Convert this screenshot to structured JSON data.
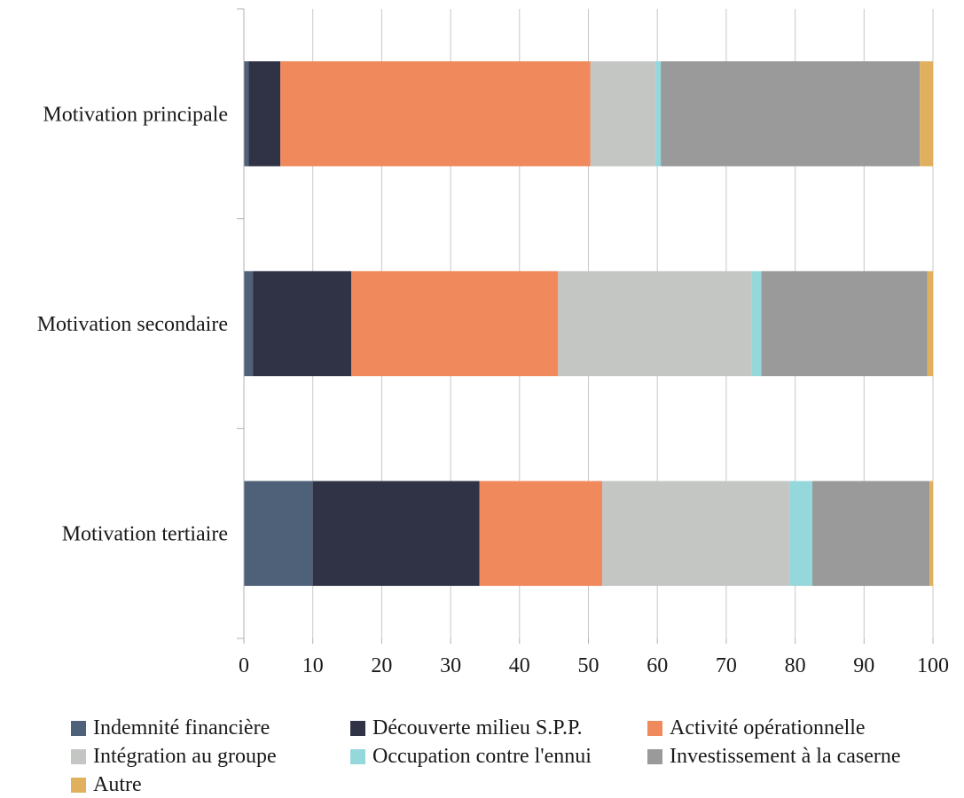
{
  "chart_data": {
    "type": "bar",
    "orientation": "horizontal",
    "stacked": true,
    "title": "",
    "xlabel": "",
    "ylabel": "",
    "xlim": [
      0,
      100
    ],
    "x_ticks": [
      0,
      10,
      20,
      30,
      40,
      50,
      60,
      70,
      80,
      90,
      100
    ],
    "grid": true,
    "legend_position": "bottom",
    "categories": [
      "Motivation principale",
      "Motivation secondaire",
      "Motivation tertiaire"
    ],
    "series": [
      {
        "name": "Indemnité financière",
        "color": "#4f6079",
        "values": [
          0.7,
          1.3,
          10.0
        ]
      },
      {
        "name": "Découverte milieu S.P.P.",
        "color": "#2f3345",
        "values": [
          4.6,
          14.3,
          24.2
        ]
      },
      {
        "name": "Activité opérationnelle",
        "color": "#f08a5d",
        "values": [
          45.0,
          30.0,
          17.8
        ]
      },
      {
        "name": "Intégration au groupe",
        "color": "#c4c6c4",
        "values": [
          9.4,
          28.1,
          27.2
        ]
      },
      {
        "name": "Occupation contre l'ennui",
        "color": "#95d8dc",
        "values": [
          0.8,
          1.4,
          3.3
        ]
      },
      {
        "name": "Investissement à la caserne",
        "color": "#9a9a9a",
        "values": [
          37.6,
          24.1,
          17.0
        ]
      },
      {
        "name": "Autre",
        "color": "#e1b05e",
        "values": [
          1.9,
          0.8,
          0.5
        ]
      }
    ]
  }
}
